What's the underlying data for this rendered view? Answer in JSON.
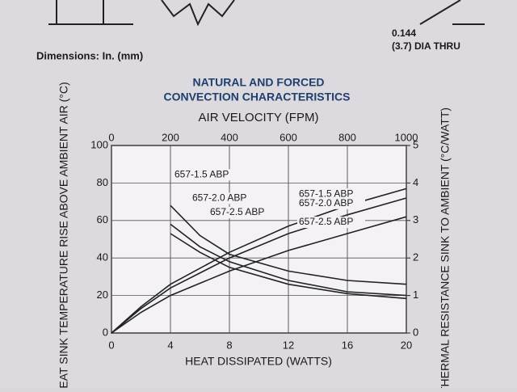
{
  "header": {
    "dimensions": "Dimensions: In. (mm)",
    "hole_size": "0.144",
    "hole_note": "(3.7) DIA THRU"
  },
  "chart_data": {
    "type": "line",
    "title": [
      "NATURAL AND FORCED",
      "CONVECTION CHARACTERISTICS"
    ],
    "xlabel": "HEAT DISSIPATED (WATTS)",
    "x2label": "AIR VELOCITY (FPM)",
    "ylabel": "HEAT SINK TEMPERATURE RISE ABOVE AMBIENT AIR (°C)",
    "y2label": "THERMAL RESISTANCE SINK TO AMBIENT (°C/WATT)",
    "xlim": [
      0,
      20
    ],
    "xticks": [
      0,
      4,
      8,
      12,
      16,
      20
    ],
    "x2lim": [
      0,
      1000
    ],
    "x2ticks": [
      0,
      200,
      400,
      600,
      800,
      1000
    ],
    "ylim": [
      0,
      100
    ],
    "yticks": [
      0,
      20,
      40,
      60,
      80,
      100
    ],
    "y2lim": [
      0,
      5
    ],
    "y2ticks": [
      0,
      1,
      2,
      3,
      4,
      5
    ],
    "grid": true,
    "series": [
      {
        "name": "657-1.5 ABP",
        "color": "#222222",
        "axis": "y",
        "xaxis": "x",
        "x": [
          0,
          2,
          4,
          8,
          12,
          16,
          20
        ],
        "values": [
          0,
          14,
          26,
          43,
          57,
          68,
          77
        ]
      },
      {
        "name": "657-2.0 ABP",
        "color": "#222222",
        "axis": "y",
        "xaxis": "x",
        "x": [
          0,
          2,
          4,
          8,
          12,
          16,
          20
        ],
        "values": [
          0,
          13,
          24,
          40,
          53,
          63,
          72
        ]
      },
      {
        "name": "657-2.5 ABP",
        "color": "#222222",
        "axis": "y",
        "xaxis": "x",
        "x": [
          0,
          2,
          4,
          8,
          12,
          16,
          20
        ],
        "values": [
          0,
          11,
          20,
          33,
          44,
          53,
          62
        ]
      },
      {
        "name": "657-1.5 ABP",
        "color": "#222222",
        "axis": "y2",
        "xaxis": "x2",
        "x": [
          200,
          300,
          400,
          600,
          800,
          1000
        ],
        "values": [
          3.4,
          2.6,
          2.1,
          1.65,
          1.4,
          1.3
        ]
      },
      {
        "name": "657-2.0 ABP",
        "color": "#222222",
        "axis": "y2",
        "xaxis": "x2",
        "x": [
          200,
          300,
          400,
          600,
          800,
          1000
        ],
        "values": [
          2.9,
          2.3,
          1.9,
          1.4,
          1.1,
          1.0
        ]
      },
      {
        "name": "657-2.5 ABP",
        "color": "#222222",
        "axis": "y2",
        "xaxis": "x2",
        "x": [
          200,
          300,
          400,
          600,
          800,
          1000
        ],
        "values": [
          2.65,
          2.15,
          1.75,
          1.3,
          1.05,
          0.92
        ]
      }
    ]
  }
}
